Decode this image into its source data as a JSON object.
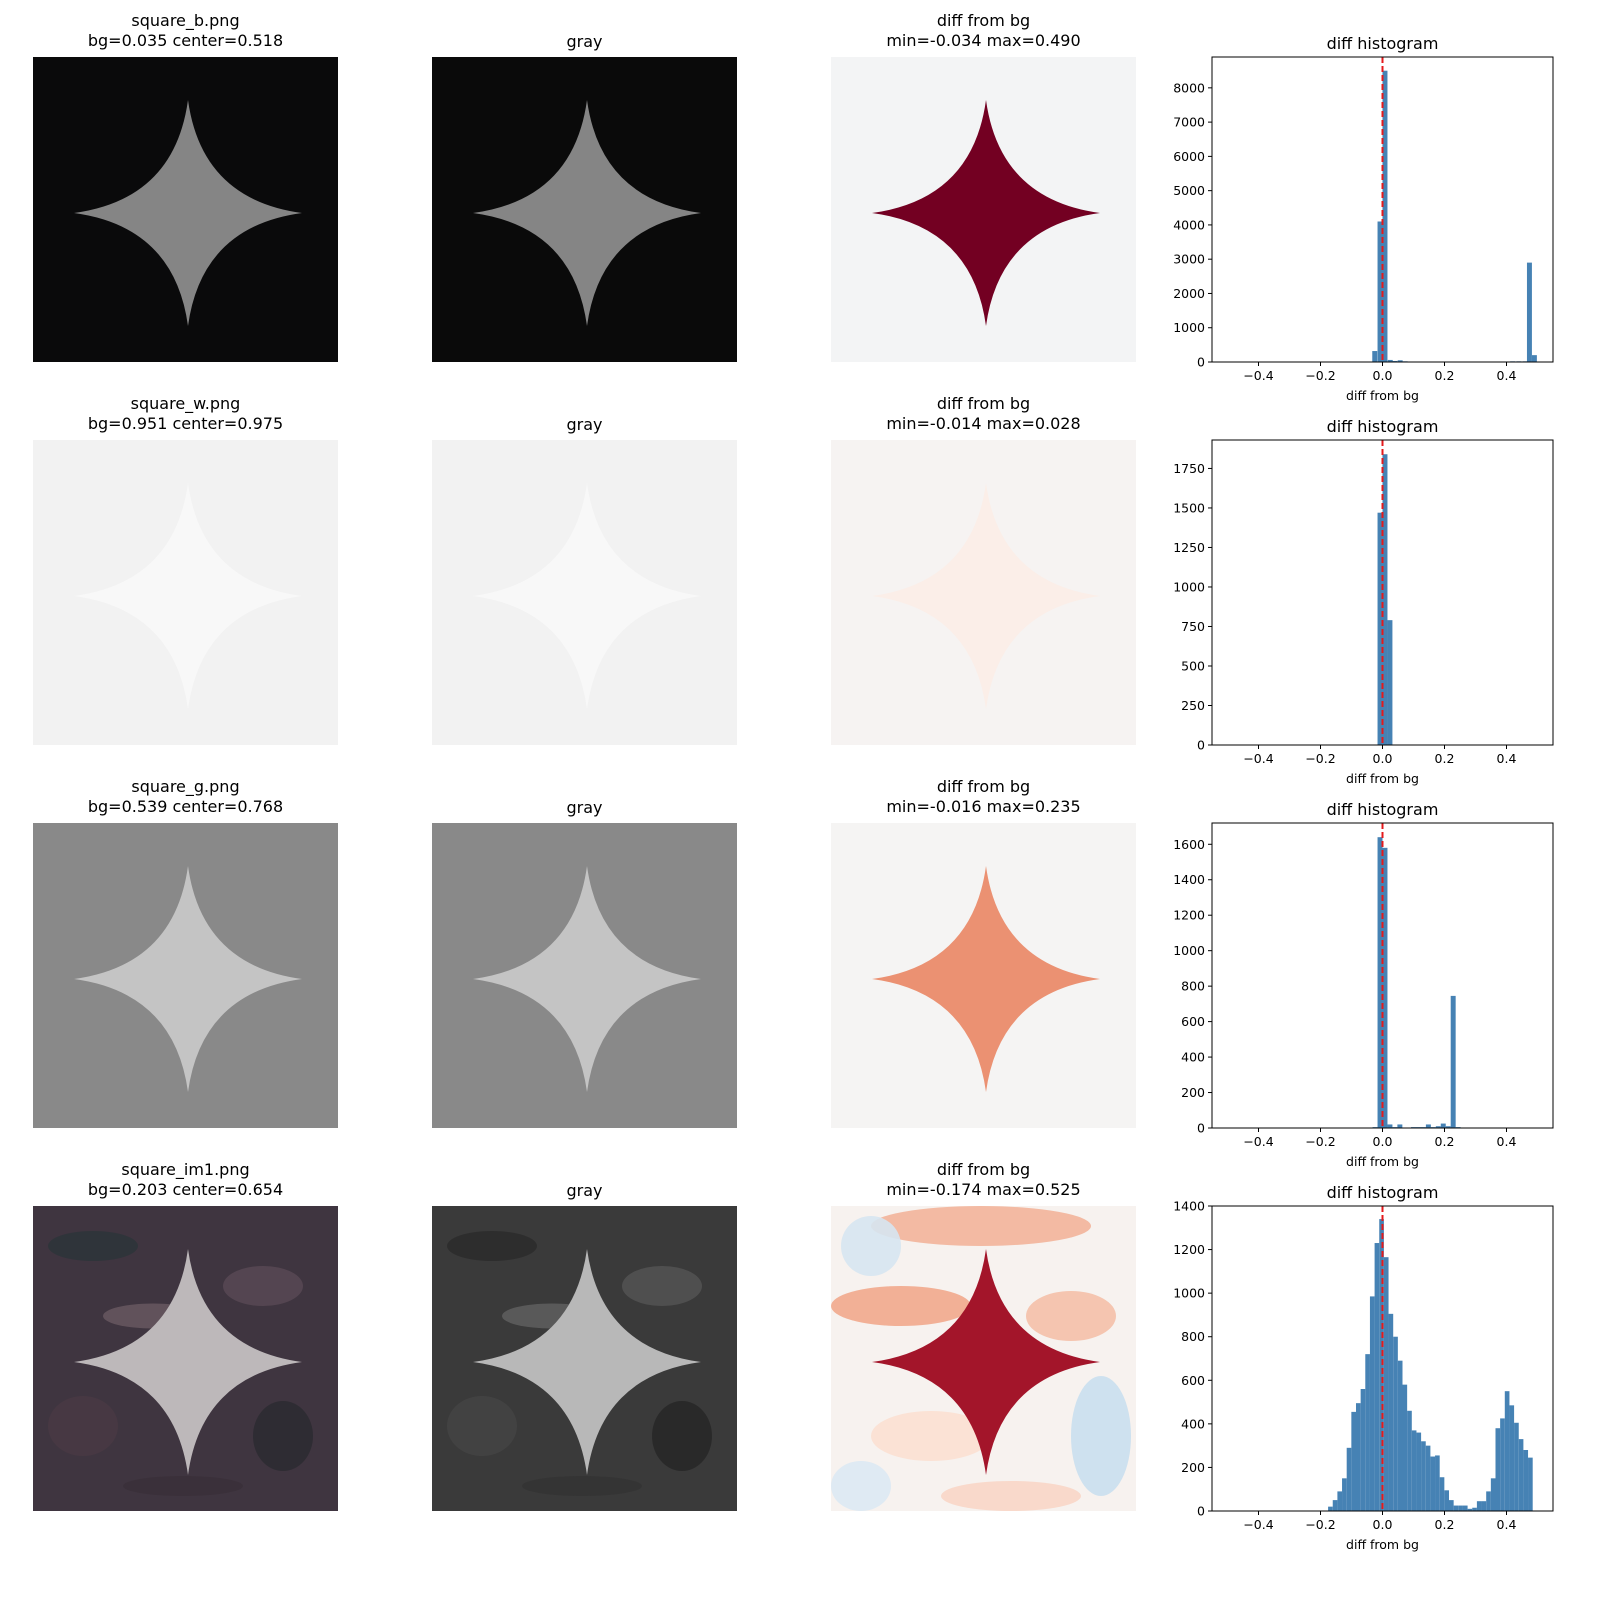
{
  "figure": {
    "rows": [
      {
        "file_title": "square_b.png",
        "stats_title": "bg=0.035 center=0.518",
        "gray_title": "gray",
        "diff_title": "diff from bg",
        "diff_stats": "min=-0.034 max=0.490",
        "hist_title": "diff histogram",
        "colors": {
          "bg": "#0a0a0b",
          "shape": "#858585",
          "gray_bg": "#0a0a0a",
          "gray_shape": "#858585",
          "diff_bg": "#f3f4f5",
          "diff_shape": "#730022"
        }
      },
      {
        "file_title": "square_w.png",
        "stats_title": "bg=0.951 center=0.975",
        "gray_title": "gray",
        "diff_title": "diff from bg",
        "diff_stats": "min=-0.014 max=0.028",
        "hist_title": "diff histogram",
        "colors": {
          "bg": "#f2f2f2",
          "shape": "#f8f8f8",
          "gray_bg": "#f2f2f2",
          "gray_shape": "#f8f8f8",
          "diff_bg": "#f6f3f2",
          "diff_shape": "#fbeee8"
        }
      },
      {
        "file_title": "square_g.png",
        "stats_title": "bg=0.539 center=0.768",
        "gray_title": "gray",
        "diff_title": "diff from bg",
        "diff_stats": "min=-0.016 max=0.235",
        "hist_title": "diff histogram",
        "colors": {
          "bg": "#898989",
          "shape": "#c4c4c4",
          "gray_bg": "#898989",
          "gray_shape": "#c4c4c4",
          "diff_bg": "#f5f4f3",
          "diff_shape": "#eb9172"
        }
      },
      {
        "file_title": "square_im1.png",
        "stats_title": "bg=0.203 center=0.654",
        "gray_title": "gray",
        "diff_title": "diff from bg",
        "diff_stats": "min=-0.174 max=0.525",
        "hist_title": "diff histogram",
        "colors": {
          "bg": "#3f3540",
          "shape": "#bdb8ba",
          "gray_bg": "#3a3a3a",
          "gray_shape": "#b8b8b8",
          "diff_bg": "#f6d5c5",
          "diff_shape": "#a3152a"
        }
      }
    ],
    "hist_style": {
      "bar_color": "#4682b4",
      "zero_line_color": "#e41a1c"
    }
  },
  "chart_data": [
    {
      "type": "bar",
      "title": "diff histogram",
      "subtitle": "square_b.png",
      "xlabel": "diff from bg",
      "ylabel": "",
      "xlim": [
        -0.55,
        0.55
      ],
      "ylim": [
        0,
        8900
      ],
      "xticks": [
        "-0.4",
        "-0.2",
        "0.0",
        "0.2",
        "0.4"
      ],
      "yticks": [
        "0",
        "1000",
        "2000",
        "3000",
        "4000",
        "5000",
        "6000",
        "7000",
        "8000"
      ],
      "reference_line": {
        "x": 0.0,
        "style": "dashed",
        "color": "red"
      },
      "bins": [
        {
          "x": -0.025,
          "count": 320
        },
        {
          "x": -0.008,
          "count": 4100
        },
        {
          "x": 0.008,
          "count": 8500
        },
        {
          "x": 0.025,
          "count": 60
        },
        {
          "x": 0.04,
          "count": 30
        },
        {
          "x": 0.057,
          "count": 50
        },
        {
          "x": 0.073,
          "count": 20
        },
        {
          "x": 0.12,
          "count": 10
        },
        {
          "x": 0.15,
          "count": 10
        },
        {
          "x": 0.21,
          "count": 10
        },
        {
          "x": 0.245,
          "count": 10
        },
        {
          "x": 0.275,
          "count": 10
        },
        {
          "x": 0.31,
          "count": 10
        },
        {
          "x": 0.34,
          "count": 10
        },
        {
          "x": 0.42,
          "count": 20
        },
        {
          "x": 0.44,
          "count": 20
        },
        {
          "x": 0.46,
          "count": 20
        },
        {
          "x": 0.474,
          "count": 2900
        },
        {
          "x": 0.49,
          "count": 200
        }
      ]
    },
    {
      "type": "bar",
      "title": "diff histogram",
      "subtitle": "square_w.png",
      "xlabel": "diff from bg",
      "xlim": [
        -0.55,
        0.55
      ],
      "ylim": [
        0,
        1930
      ],
      "xticks": [
        "-0.4",
        "-0.2",
        "0.0",
        "0.2",
        "0.4"
      ],
      "yticks": [
        "0",
        "250",
        "500",
        "750",
        "1000",
        "1250",
        "1500",
        "1750"
      ],
      "reference_line": {
        "x": 0.0,
        "style": "dashed",
        "color": "red"
      },
      "bins": [
        {
          "x": -0.008,
          "count": 1470
        },
        {
          "x": 0.008,
          "count": 1840
        },
        {
          "x": 0.024,
          "count": 790
        }
      ]
    },
    {
      "type": "bar",
      "title": "diff histogram",
      "subtitle": "square_g.png",
      "xlabel": "diff from bg",
      "xlim": [
        -0.55,
        0.55
      ],
      "ylim": [
        0,
        1720
      ],
      "xticks": [
        "-0.4",
        "-0.2",
        "0.0",
        "0.2",
        "0.4"
      ],
      "yticks": [
        "0",
        "200",
        "400",
        "600",
        "800",
        "1000",
        "1200",
        "1400",
        "1600"
      ],
      "reference_line": {
        "x": 0.0,
        "style": "dashed",
        "color": "red"
      },
      "bins": [
        {
          "x": -0.024,
          "count": 5
        },
        {
          "x": -0.008,
          "count": 1640
        },
        {
          "x": 0.008,
          "count": 1580
        },
        {
          "x": 0.024,
          "count": 20
        },
        {
          "x": 0.04,
          "count": 5
        },
        {
          "x": 0.056,
          "count": 20
        },
        {
          "x": 0.1,
          "count": 5
        },
        {
          "x": 0.116,
          "count": 5
        },
        {
          "x": 0.132,
          "count": 5
        },
        {
          "x": 0.148,
          "count": 20
        },
        {
          "x": 0.164,
          "count": 5
        },
        {
          "x": 0.18,
          "count": 10
        },
        {
          "x": 0.196,
          "count": 25
        },
        {
          "x": 0.212,
          "count": 10
        },
        {
          "x": 0.228,
          "count": 745
        },
        {
          "x": 0.244,
          "count": 5
        }
      ]
    },
    {
      "type": "bar",
      "title": "diff histogram",
      "subtitle": "square_im1.png",
      "xlabel": "diff from bg",
      "xlim": [
        -0.55,
        0.55
      ],
      "ylim": [
        0,
        1400
      ],
      "xticks": [
        "-0.4",
        "-0.2",
        "0.0",
        "0.2",
        "0.4"
      ],
      "yticks": [
        "0",
        "200",
        "400",
        "600",
        "800",
        "1000",
        "1200",
        "1400"
      ],
      "reference_line": {
        "x": 0.0,
        "style": "dashed",
        "color": "red"
      },
      "bins": [
        {
          "x": -0.168,
          "count": 20
        },
        {
          "x": -0.153,
          "count": 50
        },
        {
          "x": -0.138,
          "count": 90
        },
        {
          "x": -0.123,
          "count": 150
        },
        {
          "x": -0.108,
          "count": 290
        },
        {
          "x": -0.093,
          "count": 455
        },
        {
          "x": -0.078,
          "count": 495
        },
        {
          "x": -0.063,
          "count": 560
        },
        {
          "x": -0.048,
          "count": 720
        },
        {
          "x": -0.033,
          "count": 985
        },
        {
          "x": -0.018,
          "count": 1230
        },
        {
          "x": -0.003,
          "count": 1340
        },
        {
          "x": 0.012,
          "count": 1165
        },
        {
          "x": 0.027,
          "count": 905
        },
        {
          "x": 0.042,
          "count": 800
        },
        {
          "x": 0.057,
          "count": 690
        },
        {
          "x": 0.072,
          "count": 580
        },
        {
          "x": 0.087,
          "count": 460
        },
        {
          "x": 0.102,
          "count": 370
        },
        {
          "x": 0.117,
          "count": 360
        },
        {
          "x": 0.132,
          "count": 320
        },
        {
          "x": 0.147,
          "count": 300
        },
        {
          "x": 0.162,
          "count": 250
        },
        {
          "x": 0.177,
          "count": 255
        },
        {
          "x": 0.192,
          "count": 155
        },
        {
          "x": 0.207,
          "count": 95
        },
        {
          "x": 0.222,
          "count": 50
        },
        {
          "x": 0.237,
          "count": 25
        },
        {
          "x": 0.252,
          "count": 25
        },
        {
          "x": 0.267,
          "count": 25
        },
        {
          "x": 0.282,
          "count": 10
        },
        {
          "x": 0.297,
          "count": 15
        },
        {
          "x": 0.312,
          "count": 45
        },
        {
          "x": 0.327,
          "count": 45
        },
        {
          "x": 0.342,
          "count": 90
        },
        {
          "x": 0.357,
          "count": 150
        },
        {
          "x": 0.372,
          "count": 380
        },
        {
          "x": 0.387,
          "count": 425
        },
        {
          "x": 0.402,
          "count": 550
        },
        {
          "x": 0.417,
          "count": 485
        },
        {
          "x": 0.432,
          "count": 405
        },
        {
          "x": 0.447,
          "count": 330
        },
        {
          "x": 0.462,
          "count": 280
        },
        {
          "x": 0.477,
          "count": 245
        }
      ]
    }
  ]
}
